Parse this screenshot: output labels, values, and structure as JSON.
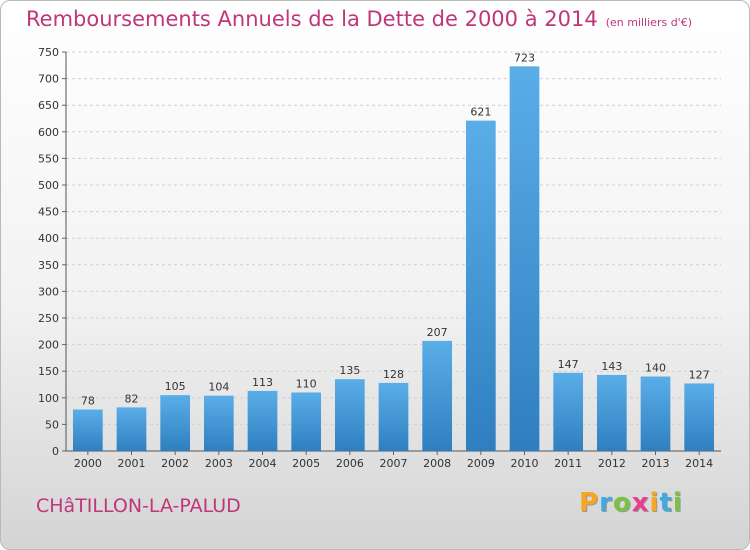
{
  "title": "Remboursements Annuels de la Dette de 2000 à 2014",
  "subtitle": "(en milliers d'€)",
  "commune": "CHâTILLON-LA-PALUD",
  "logo": {
    "text": "Proxiti",
    "letters": [
      {
        "ch": "P",
        "color": "#f5a623"
      },
      {
        "ch": "r",
        "color": "#3fa9e0"
      },
      {
        "ch": "o",
        "color": "#7cc242"
      },
      {
        "ch": "x",
        "color": "#e83e8c"
      },
      {
        "ch": "i",
        "color": "#f5a623"
      },
      {
        "ch": "t",
        "color": "#3fa9e0"
      },
      {
        "ch": "i",
        "color": "#7cc242"
      }
    ]
  },
  "colors": {
    "bar_top": "#5aaee8",
    "bar_bottom": "#2f7fc0",
    "text": "#333333",
    "accent": "#c0367a"
  },
  "chart_data": {
    "type": "bar",
    "title": "Remboursements Annuels de la Dette de 2000 à 2014",
    "subtitle": "(en milliers d'€)",
    "categories": [
      "2000",
      "2001",
      "2002",
      "2003",
      "2004",
      "2005",
      "2006",
      "2007",
      "2008",
      "2009",
      "2010",
      "2011",
      "2012",
      "2013",
      "2014"
    ],
    "values": [
      78,
      82,
      105,
      104,
      113,
      110,
      135,
      128,
      207,
      621,
      723,
      147,
      143,
      140,
      127
    ],
    "ylim": [
      0,
      750
    ],
    "yticks": [
      0,
      50,
      100,
      150,
      200,
      250,
      300,
      350,
      400,
      450,
      500,
      550,
      600,
      650,
      700,
      750
    ],
    "grid": true,
    "data_labels": true
  }
}
